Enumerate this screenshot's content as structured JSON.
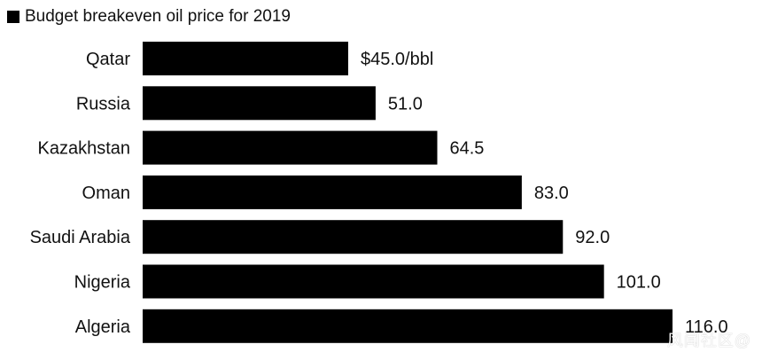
{
  "chart_data": {
    "type": "bar",
    "orientation": "horizontal",
    "title": "Budget breakeven oil price for 2019",
    "legend": [
      "Budget breakeven oil price for 2019"
    ],
    "categories": [
      "Qatar",
      "Russia",
      "Kazakhstan",
      "Oman",
      "Saudi Arabia",
      "Nigeria",
      "Algeria"
    ],
    "values": [
      45.0,
      51.0,
      64.5,
      83.0,
      92.0,
      101.0,
      116.0
    ],
    "value_labels": [
      "$45.0/bbl",
      "51.0",
      "64.5",
      "83.0",
      "92.0",
      "101.0",
      "116.0"
    ],
    "xlim": [
      0,
      116
    ],
    "xlabel": "",
    "ylabel": "",
    "grid": false,
    "bar_color": "#000000"
  },
  "watermark": "风闻社区@"
}
